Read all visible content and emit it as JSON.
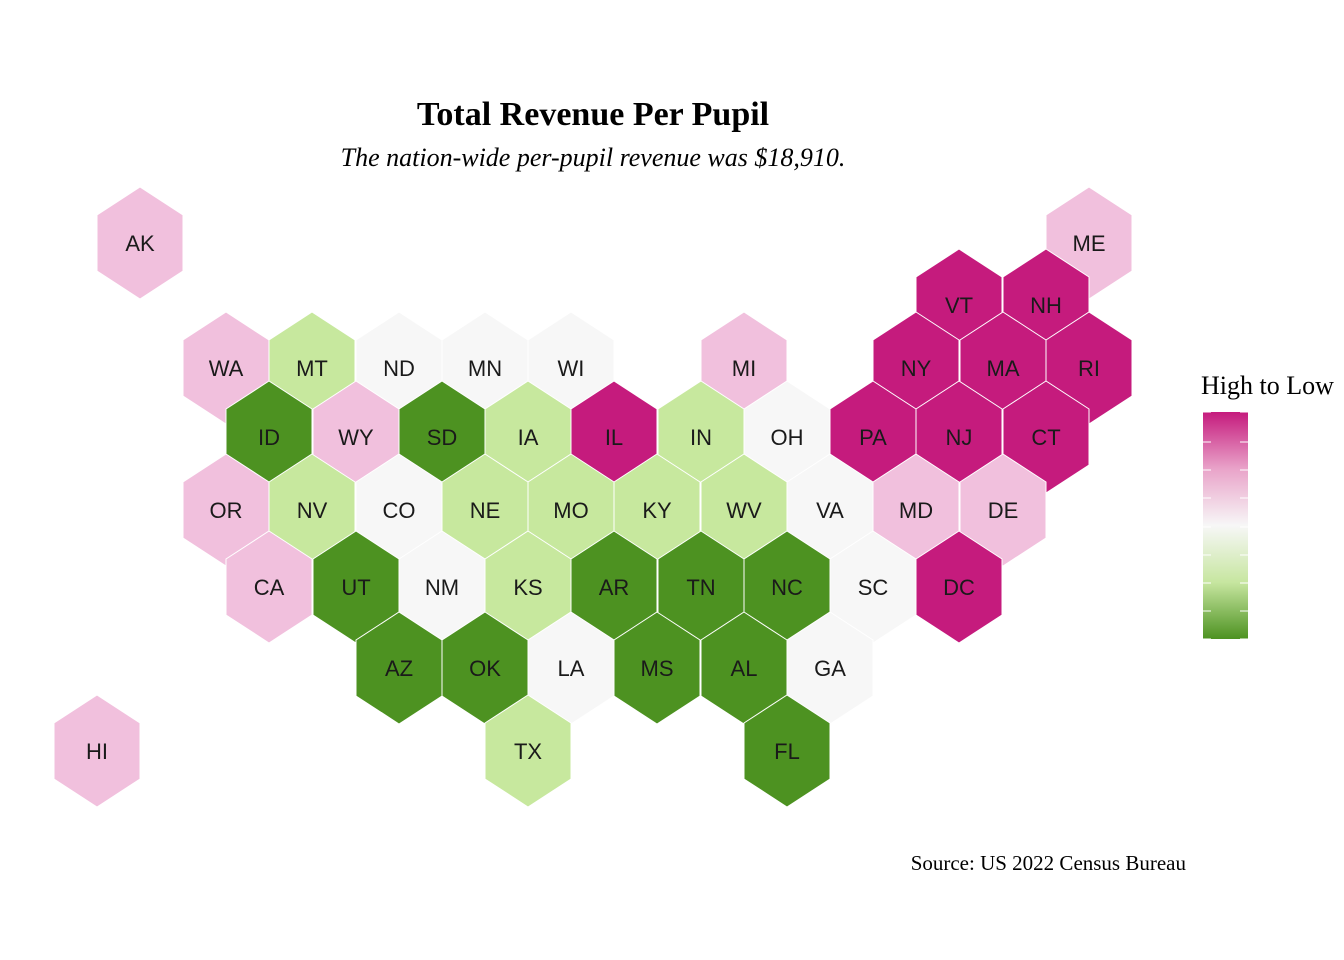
{
  "title": "Total Revenue Per Pupil",
  "subtitle": "The nation-wide per-pupil revenue was $18,910.",
  "caption": "Source: US 2022 Census Bureau",
  "legend": {
    "title": "High to Low",
    "gradient": [
      "#c51b7d",
      "#e9a3c9",
      "#f7f7f7",
      "#c7e6a0",
      "#4d9221"
    ]
  },
  "palette": {
    "highest": "#c51b7d",
    "high": "#f1c0dd",
    "middle": "#f7f7f7",
    "low": "#c7e89e",
    "lowest": "#4d9221"
  },
  "chart_data": {
    "type": "hexbin-map",
    "levels": [
      "highest",
      "high",
      "middle",
      "low",
      "lowest"
    ],
    "states": [
      {
        "code": "AK",
        "level": "high"
      },
      {
        "code": "ME",
        "level": "high"
      },
      {
        "code": "VT",
        "level": "highest"
      },
      {
        "code": "NH",
        "level": "highest"
      },
      {
        "code": "WA",
        "level": "high"
      },
      {
        "code": "MT",
        "level": "low"
      },
      {
        "code": "ND",
        "level": "middle"
      },
      {
        "code": "MN",
        "level": "middle"
      },
      {
        "code": "WI",
        "level": "middle"
      },
      {
        "code": "MI",
        "level": "high"
      },
      {
        "code": "NY",
        "level": "highest"
      },
      {
        "code": "MA",
        "level": "highest"
      },
      {
        "code": "RI",
        "level": "highest"
      },
      {
        "code": "ID",
        "level": "lowest"
      },
      {
        "code": "WY",
        "level": "high"
      },
      {
        "code": "SD",
        "level": "lowest"
      },
      {
        "code": "IA",
        "level": "low"
      },
      {
        "code": "IL",
        "level": "highest"
      },
      {
        "code": "IN",
        "level": "low"
      },
      {
        "code": "OH",
        "level": "middle"
      },
      {
        "code": "PA",
        "level": "highest"
      },
      {
        "code": "NJ",
        "level": "highest"
      },
      {
        "code": "CT",
        "level": "highest"
      },
      {
        "code": "OR",
        "level": "high"
      },
      {
        "code": "NV",
        "level": "low"
      },
      {
        "code": "CO",
        "level": "middle"
      },
      {
        "code": "NE",
        "level": "low"
      },
      {
        "code": "MO",
        "level": "low"
      },
      {
        "code": "KY",
        "level": "low"
      },
      {
        "code": "WV",
        "level": "low"
      },
      {
        "code": "VA",
        "level": "middle"
      },
      {
        "code": "MD",
        "level": "high"
      },
      {
        "code": "DE",
        "level": "high"
      },
      {
        "code": "CA",
        "level": "high"
      },
      {
        "code": "UT",
        "level": "lowest"
      },
      {
        "code": "NM",
        "level": "middle"
      },
      {
        "code": "KS",
        "level": "low"
      },
      {
        "code": "AR",
        "level": "lowest"
      },
      {
        "code": "TN",
        "level": "lowest"
      },
      {
        "code": "NC",
        "level": "lowest"
      },
      {
        "code": "SC",
        "level": "middle"
      },
      {
        "code": "DC",
        "level": "highest"
      },
      {
        "code": "AZ",
        "level": "lowest"
      },
      {
        "code": "OK",
        "level": "lowest"
      },
      {
        "code": "LA",
        "level": "middle"
      },
      {
        "code": "MS",
        "level": "lowest"
      },
      {
        "code": "AL",
        "level": "lowest"
      },
      {
        "code": "GA",
        "level": "middle"
      },
      {
        "code": "HI",
        "level": "high"
      },
      {
        "code": "TX",
        "level": "low"
      },
      {
        "code": "FL",
        "level": "lowest"
      }
    ]
  }
}
